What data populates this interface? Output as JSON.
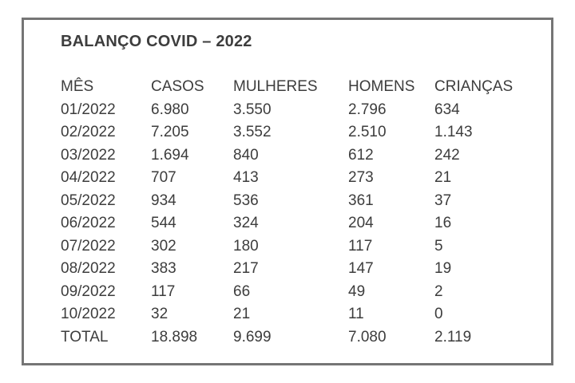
{
  "page": {
    "title": "BALANÇO COVID – 2022"
  },
  "colors": {
    "background": "#ffffff",
    "text": "#3d3d3d",
    "frame_border": "#757575"
  },
  "chart_data": {
    "type": "table",
    "title": "BALANÇO COVID – 2022",
    "columns": [
      "MÊS",
      "CASOS",
      "MULHERES",
      "HOMENS",
      "CRIANÇAS"
    ],
    "rows": [
      [
        "01/2022",
        "6.980",
        "3.550",
        "2.796",
        "634"
      ],
      [
        "02/2022",
        "7.205",
        "3.552",
        "2.510",
        "1.143"
      ],
      [
        "03/2022",
        "1.694",
        "840",
        "612",
        "242"
      ],
      [
        "04/2022",
        "707",
        "413",
        "273",
        "21"
      ],
      [
        "05/2022",
        "934",
        "536",
        "361",
        "37"
      ],
      [
        "06/2022",
        "544",
        "324",
        "204",
        "16"
      ],
      [
        "07/2022",
        "302",
        "180",
        "117",
        "5"
      ],
      [
        "08/2022",
        "383",
        "217",
        "147",
        "19"
      ],
      [
        "09/2022",
        "117",
        "66",
        "49",
        "2"
      ],
      [
        "10/2022",
        "32",
        "21",
        "11",
        "0"
      ],
      [
        "TOTAL",
        "18.898",
        "9.699",
        "7.080",
        "2.119"
      ]
    ]
  }
}
